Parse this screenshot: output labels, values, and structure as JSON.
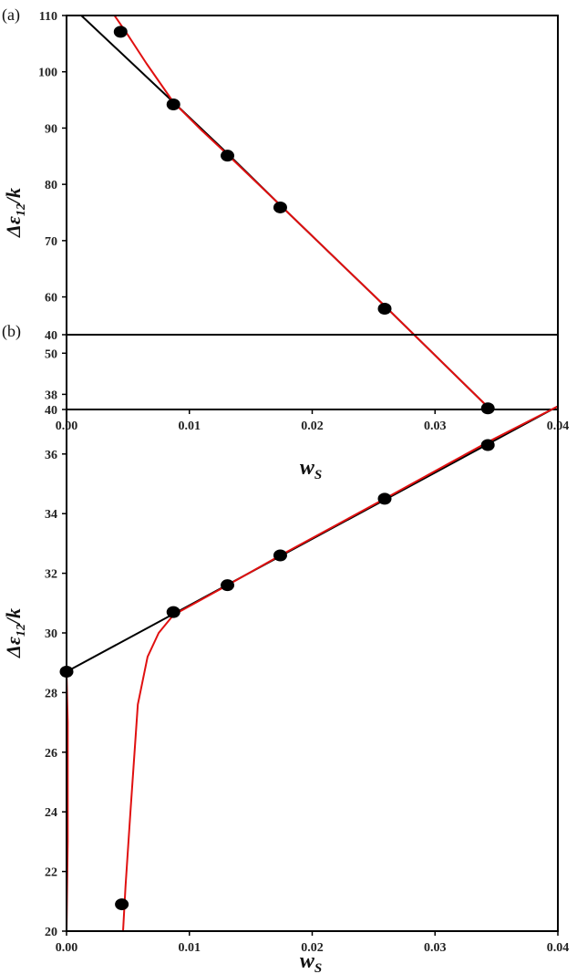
{
  "figure": {
    "background": "#ffffff"
  },
  "chart_data": [
    {
      "panel_label": "(a)",
      "type": "scatter",
      "xlabel": "w",
      "xlabel_sub": "S",
      "ylabel": "Δε",
      "ylabel_sub": "12",
      "ylabel_suffix": "/k",
      "xlim": [
        0,
        0.04
      ],
      "ylim": [
        40,
        110
      ],
      "x_ticks": [
        0,
        0.01,
        0.02,
        0.03,
        0.04
      ],
      "x_tick_labels": [
        "0.00",
        "0.01",
        "0.02",
        "0.03",
        "0.04"
      ],
      "y_ticks": [
        40,
        50,
        60,
        70,
        80,
        90,
        100,
        110
      ],
      "y_tick_labels": [
        "40",
        "50",
        "60",
        "70",
        "80",
        "90",
        "100",
        "110"
      ],
      "grid": false,
      "legend": "none",
      "points": [
        {
          "x": 0.0044,
          "y": 107.1
        },
        {
          "x": 0.0087,
          "y": 94.2
        },
        {
          "x": 0.0131,
          "y": 85.1
        },
        {
          "x": 0.0174,
          "y": 75.9
        },
        {
          "x": 0.0259,
          "y": 57.9
        },
        {
          "x": 0.0343,
          "y": 40.2
        }
      ],
      "lines": [
        {
          "color": "#000000",
          "x": [
            0.0012,
            0.0087,
            0.0131,
            0.0174,
            0.0259,
            0.0345
          ],
          "y": [
            110,
            94.6,
            85.5,
            76.3,
            58.4,
            40
          ]
        },
        {
          "color": "#e01010",
          "x": [
            0.0039,
            0.005,
            0.0065,
            0.0087,
            0.011,
            0.0131,
            0.0174,
            0.0259,
            0.0345
          ],
          "y": [
            110,
            106.5,
            101.5,
            94.6,
            89.6,
            85.3,
            76.3,
            58.4,
            40
          ]
        }
      ],
      "colors": {
        "points": "#000000"
      }
    },
    {
      "panel_label": "(b)",
      "type": "scatter",
      "xlabel": "w",
      "xlabel_sub": "S",
      "ylabel": "Δε",
      "ylabel_sub": "12",
      "ylabel_suffix": "/k",
      "xlim": [
        0,
        0.04
      ],
      "ylim": [
        20,
        40
      ],
      "x_ticks": [
        0,
        0.01,
        0.02,
        0.03,
        0.04
      ],
      "x_tick_labels": [
        "0.00",
        "0.01",
        "0.02",
        "0.03",
        "0.04"
      ],
      "y_ticks": [
        20,
        22,
        24,
        26,
        28,
        30,
        32,
        34,
        36,
        38,
        40
      ],
      "y_tick_labels": [
        "20",
        "22",
        "24",
        "26",
        "28",
        "30",
        "32",
        "34",
        "36",
        "38",
        "40"
      ],
      "grid": false,
      "legend": "none",
      "points": [
        {
          "x": 0.0,
          "y": 28.7
        },
        {
          "x": 0.0045,
          "y": 20.9
        },
        {
          "x": 0.0087,
          "y": 30.7
        },
        {
          "x": 0.0131,
          "y": 31.6
        },
        {
          "x": 0.0174,
          "y": 32.6
        },
        {
          "x": 0.0259,
          "y": 34.5
        },
        {
          "x": 0.0343,
          "y": 36.3
        }
      ],
      "lines": [
        {
          "color": "#000000",
          "x": [
            0.0,
            0.04
          ],
          "y": [
            28.7,
            37.6
          ]
        },
        {
          "color": "#e01010",
          "x": [
            0.0046,
            0.0048,
            0.0052,
            0.0058,
            0.0066,
            0.0075,
            0.0087,
            0.0131,
            0.0174,
            0.0259,
            0.0343,
            0.04
          ],
          "y": [
            20,
            21.5,
            24,
            27.6,
            29.2,
            30.0,
            30.6,
            31.6,
            32.6,
            34.5,
            36.4,
            37.6
          ]
        },
        {
          "color": "#e01010",
          "x": [
            0.0,
            0.0001,
            0.0001,
            0.0
          ],
          "y": [
            20,
            23,
            27,
            28.7
          ]
        }
      ],
      "colors": {
        "points": "#000000"
      }
    }
  ]
}
